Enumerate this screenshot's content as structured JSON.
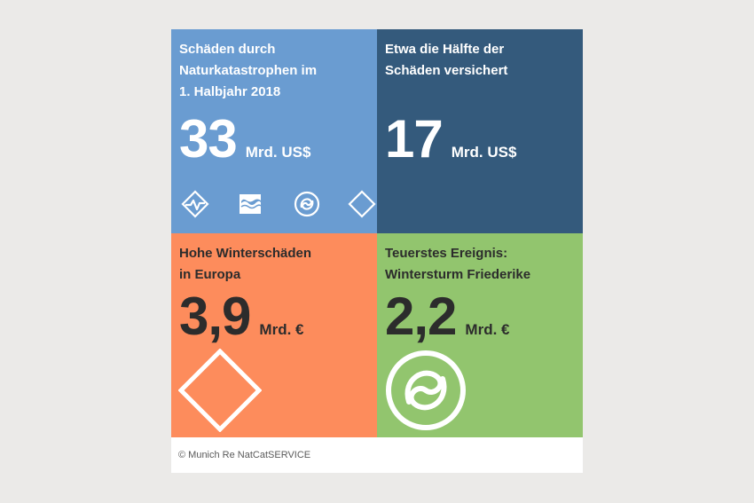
{
  "tiles": [
    {
      "headline": "Schäden durch\nNaturkatastrophen im\n1. Halbjahr 2018",
      "number": "33",
      "unit": "Mrd. US$",
      "color": "#6a9cd1",
      "icons": [
        "earthquake-icon",
        "flood-icon",
        "storm-icon",
        "diamond-icon"
      ]
    },
    {
      "headline": "Etwa die Hälfte der\nSchäden versichert",
      "number": "17",
      "unit": "Mrd. US$",
      "color": "#345a7c"
    },
    {
      "headline": "Hohe Winterschäden\nin Europa",
      "number": "3,9",
      "unit": "Mrd. €",
      "color": "#fd8c5c",
      "icon": "diamond-icon"
    },
    {
      "headline": "Teuerstes Ereignis:\nWintersturm Friederike",
      "number": "2,2",
      "unit": "Mrd. €",
      "color": "#92c56e",
      "icon": "storm-icon"
    }
  ],
  "footer": "© Munich Re NatCatSERVICE"
}
